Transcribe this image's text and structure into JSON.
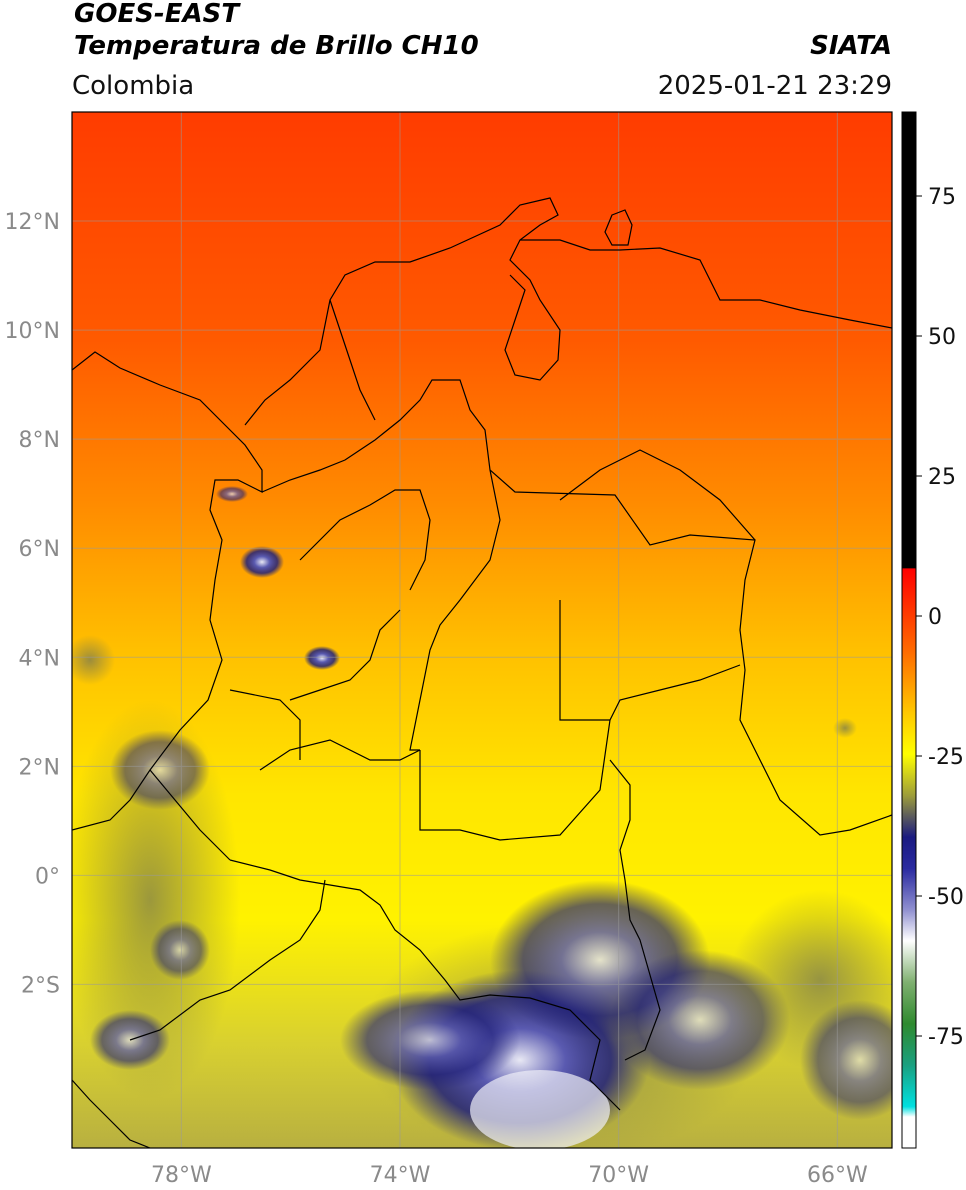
{
  "header": {
    "satellite": "GOES-EAST",
    "product": "Temperatura de Brillo CH10",
    "org": "SIATA",
    "region": "Colombia",
    "datetime": "2025-01-21 23:29"
  },
  "map": {
    "lon_range": [
      -80,
      -65
    ],
    "lat_range": [
      -5,
      14
    ],
    "lat_ticks": [
      {
        "v": 12,
        "label": "12°N"
      },
      {
        "v": 10,
        "label": "10°N"
      },
      {
        "v": 8,
        "label": "8°N"
      },
      {
        "v": 6,
        "label": "6°N"
      },
      {
        "v": 4,
        "label": "4°N"
      },
      {
        "v": 2,
        "label": "2°N"
      },
      {
        "v": 0,
        "label": "0°"
      },
      {
        "v": -2,
        "label": "2°S"
      }
    ],
    "lon_ticks": [
      {
        "v": -78,
        "label": "78°W"
      },
      {
        "v": -74,
        "label": "74°W"
      },
      {
        "v": -70,
        "label": "70°W"
      },
      {
        "v": -66,
        "label": "66°W"
      }
    ]
  },
  "colorbar": {
    "range": [
      -95,
      90
    ],
    "ticks": [
      {
        "v": 75,
        "label": "75"
      },
      {
        "v": 50,
        "label": "50"
      },
      {
        "v": 25,
        "label": "25"
      },
      {
        "v": 0,
        "label": "0"
      },
      {
        "v": -25,
        "label": "-25"
      },
      {
        "v": -50,
        "label": "-50"
      },
      {
        "v": -75,
        "label": "-75"
      }
    ]
  }
}
